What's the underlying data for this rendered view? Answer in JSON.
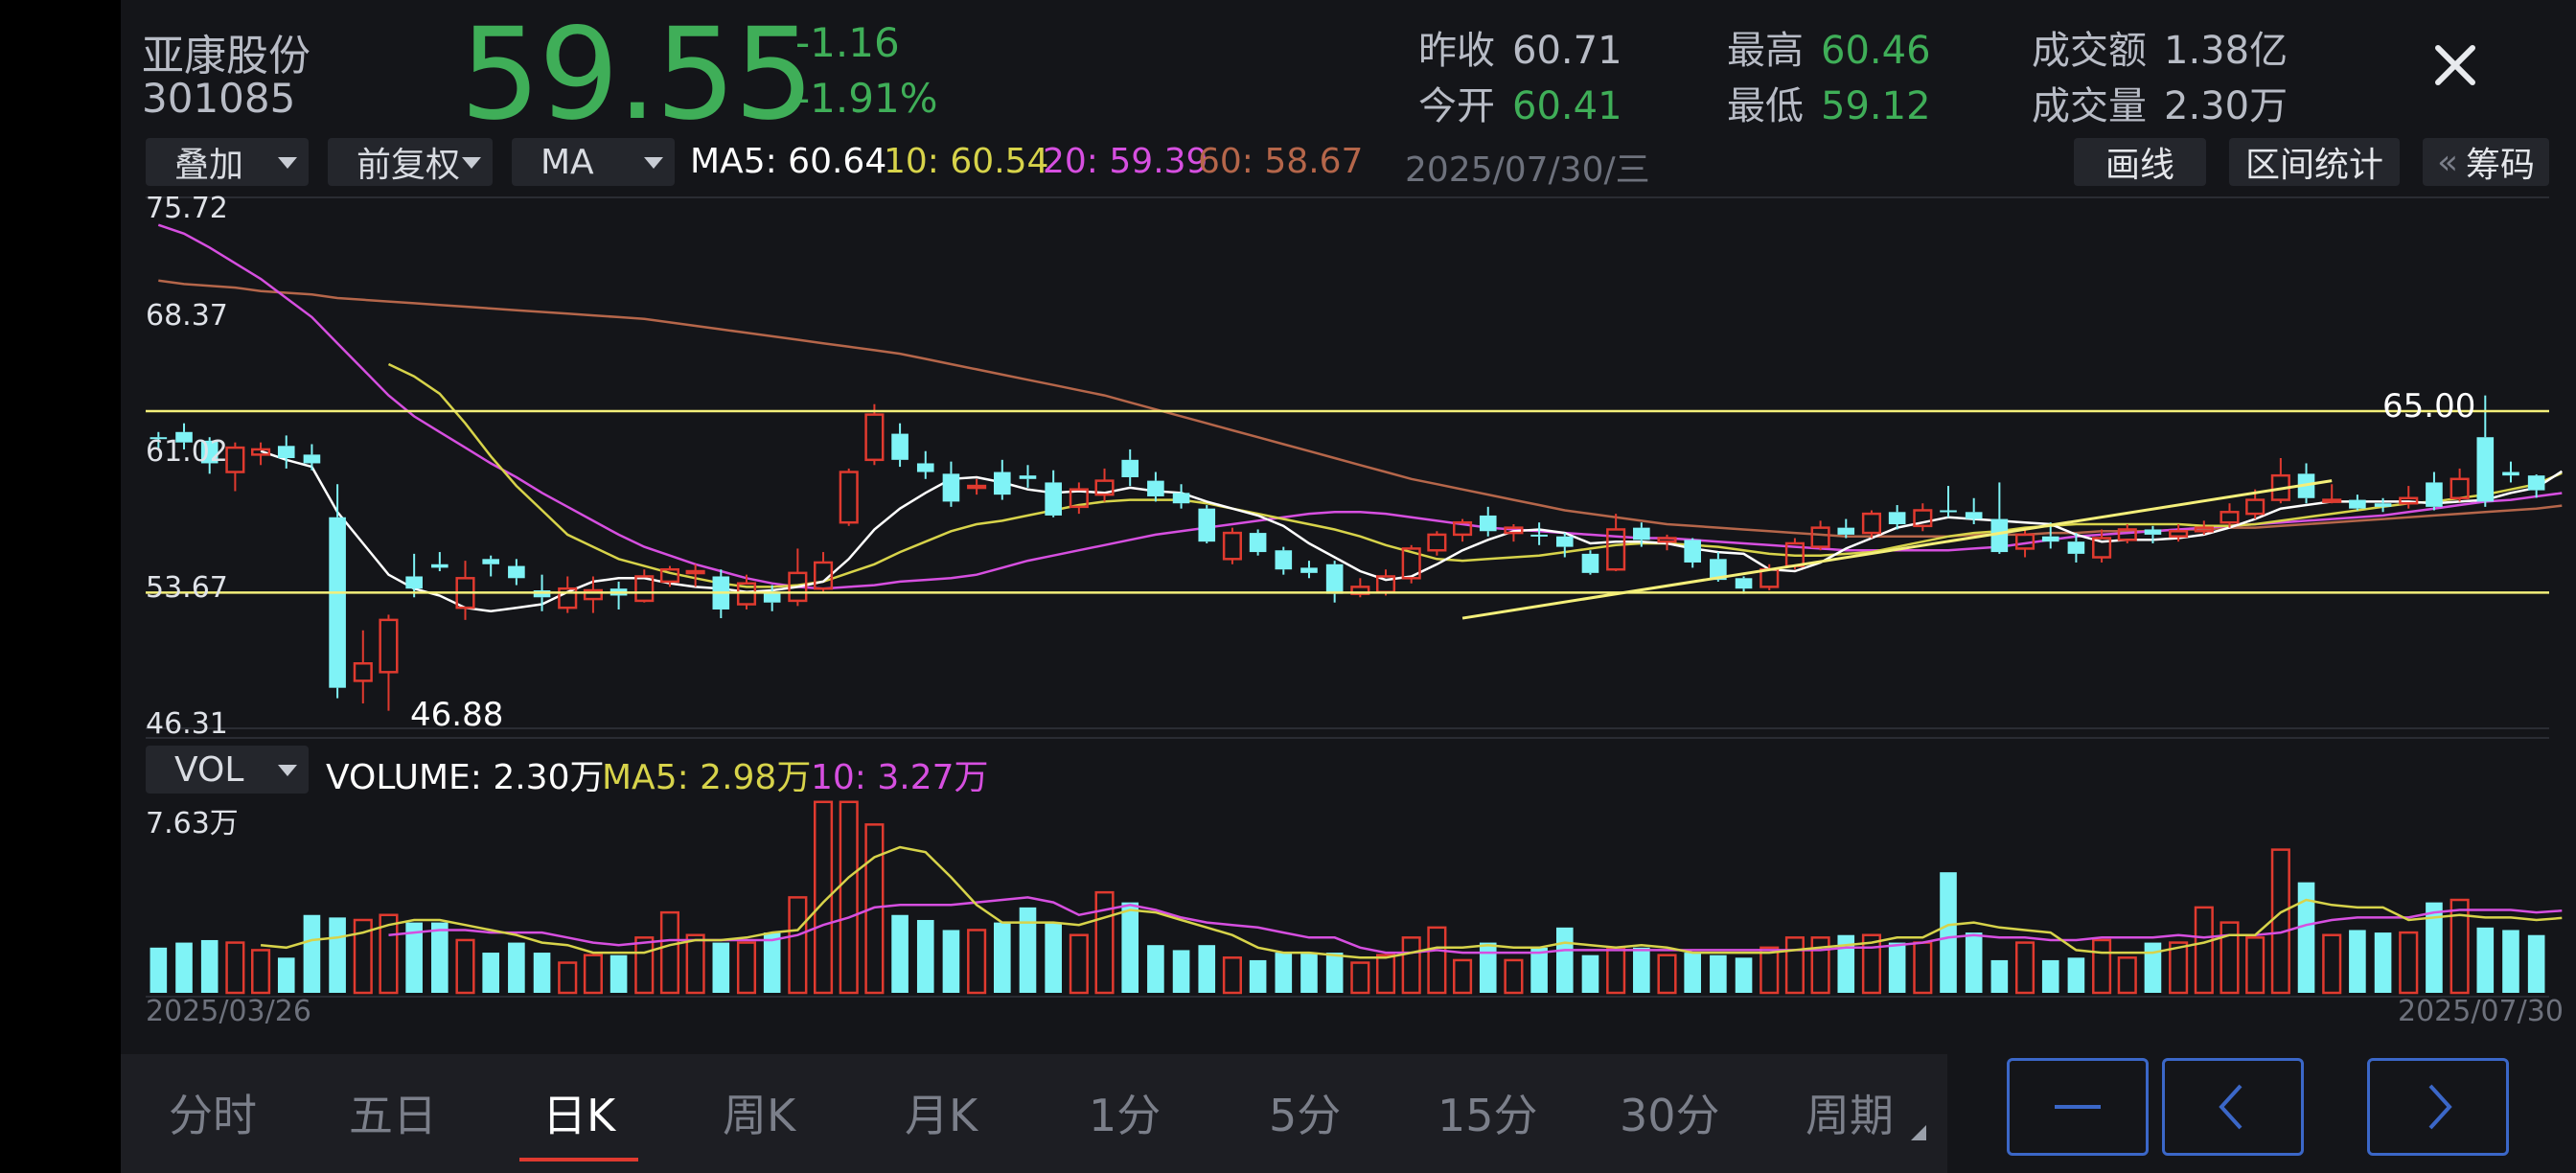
{
  "stock": {
    "name": "亚康股份",
    "code": "301085",
    "price": "59.55",
    "change": "-1.16",
    "change_pct": "-1.91%"
  },
  "stats": {
    "prev_close_label": "昨收",
    "prev_close": "60.71",
    "open_label": "今开",
    "open": "60.41",
    "high_label": "最高",
    "high": "60.46",
    "low_label": "最低",
    "low": "59.12",
    "amount_label": "成交额",
    "amount": "1.38亿",
    "volume_label": "成交量",
    "volume": "2.30万"
  },
  "toolbar": {
    "overlay": "叠加",
    "adjust": "前复权",
    "indicator": "MA",
    "draw_btn": "画线",
    "range_btn": "区间统计",
    "chips_btn": "筹码",
    "chips_prefix": "«"
  },
  "ma_legend": {
    "ma5": "MA5: 60.64",
    "ma10": "10: 60.54",
    "ma20": "20: 59.39",
    "ma60": "60: 58.67"
  },
  "current_date": "2025/07/30/三",
  "vol_legend": {
    "selector": "VOL",
    "volume": "VOLUME: 2.30万",
    "ma5": "MA5: 2.98万",
    "ma10": "10: 3.27万"
  },
  "colors": {
    "up": "#e03a2f",
    "down": "#7ff3f6",
    "green_text": "#3fae58",
    "ma5": "#ffffff",
    "ma10": "#d7d34a",
    "ma20": "#d64fe0",
    "ma60": "#b5664a",
    "trendline": "#f4ef7a",
    "accent_blue": "#3b67c8"
  },
  "chart_data": {
    "type": "candlestick",
    "y_ticks": [
      "75.72",
      "68.37",
      "61.02",
      "53.67",
      "46.31"
    ],
    "ylim": [
      46.31,
      75.72
    ],
    "annotations": {
      "low": "46.88",
      "high": "65.00"
    },
    "horizontal_lines": [
      64.1,
      53.67
    ],
    "trendline": [
      [
        51,
        52.2
      ],
      [
        85,
        60.1
      ]
    ],
    "x_start": "2025/03/26",
    "x_end": "2025/07/30",
    "candles": [
      [
        62.6,
        62.5,
        62.9,
        61.9
      ],
      [
        62.9,
        62.3,
        63.4,
        61.9
      ],
      [
        62.4,
        61.1,
        62.6,
        60.5
      ],
      [
        60.6,
        62.0,
        62.3,
        59.5
      ],
      [
        61.6,
        61.9,
        62.3,
        61.0
      ],
      [
        62.1,
        61.4,
        62.7,
        60.8
      ],
      [
        61.6,
        61.1,
        62.2,
        60.7
      ],
      [
        58.0,
        48.2,
        59.9,
        47.6
      ],
      [
        48.6,
        49.6,
        51.5,
        47.3
      ],
      [
        49.1,
        52.1,
        52.4,
        46.88
      ],
      [
        54.6,
        53.9,
        55.9,
        53.4
      ],
      [
        55.3,
        55.1,
        56.0,
        54.9
      ],
      [
        52.8,
        54.5,
        55.5,
        52.1
      ],
      [
        55.6,
        55.3,
        55.8,
        54.6
      ],
      [
        55.2,
        54.5,
        55.6,
        54.1
      ],
      [
        53.8,
        53.4,
        54.7,
        52.6
      ],
      [
        52.8,
        53.9,
        54.6,
        52.5
      ],
      [
        53.3,
        53.8,
        54.6,
        52.5
      ],
      [
        53.9,
        53.5,
        54.3,
        52.7
      ],
      [
        53.2,
        54.6,
        55.0,
        53.1
      ],
      [
        54.3,
        55.0,
        55.2,
        54.0
      ],
      [
        54.8,
        54.9,
        55.3,
        54.0
      ],
      [
        54.6,
        52.7,
        55.0,
        52.2
      ],
      [
        53.0,
        54.2,
        54.7,
        52.7
      ],
      [
        53.7,
        53.1,
        54.1,
        52.6
      ],
      [
        53.2,
        54.8,
        56.2,
        52.9
      ],
      [
        53.9,
        55.4,
        56.0,
        53.7
      ],
      [
        57.7,
        60.6,
        60.8,
        57.5
      ],
      [
        61.3,
        63.9,
        64.5,
        61.0
      ],
      [
        62.8,
        61.3,
        63.4,
        60.9
      ],
      [
        61.1,
        60.6,
        61.8,
        60.2
      ],
      [
        60.5,
        58.9,
        61.2,
        58.6
      ],
      [
        59.7,
        59.8,
        60.2,
        59.3
      ],
      [
        60.6,
        59.3,
        61.3,
        59.0
      ],
      [
        60.4,
        60.2,
        61.0,
        59.7
      ],
      [
        60.0,
        58.1,
        60.7,
        58.0
      ],
      [
        58.6,
        59.6,
        60.0,
        58.2
      ],
      [
        59.3,
        60.1,
        60.8,
        58.9
      ],
      [
        61.3,
        60.3,
        61.9,
        59.8
      ],
      [
        60.1,
        59.2,
        60.6,
        58.9
      ],
      [
        59.4,
        58.8,
        59.9,
        58.5
      ],
      [
        58.5,
        56.6,
        58.7,
        56.5
      ],
      [
        55.6,
        57.1,
        57.4,
        55.3
      ],
      [
        57.1,
        56.0,
        57.3,
        55.8
      ],
      [
        56.1,
        55.0,
        56.3,
        54.7
      ],
      [
        55.1,
        54.8,
        55.5,
        54.5
      ],
      [
        55.3,
        53.6,
        55.5,
        53.1
      ],
      [
        53.6,
        54.0,
        54.5,
        53.4
      ],
      [
        53.7,
        54.6,
        55.0,
        53.5
      ],
      [
        54.5,
        56.2,
        56.4,
        54.2
      ],
      [
        56.1,
        57.0,
        57.2,
        55.8
      ],
      [
        57.0,
        57.7,
        57.9,
        56.6
      ],
      [
        58.1,
        57.2,
        58.6,
        56.9
      ],
      [
        57.1,
        57.4,
        57.6,
        56.6
      ],
      [
        57.0,
        56.9,
        57.7,
        56.4
      ],
      [
        56.9,
        56.3,
        57.1,
        55.7
      ],
      [
        55.9,
        54.8,
        56.1,
        54.7
      ],
      [
        55.0,
        57.3,
        58.2,
        54.9
      ],
      [
        57.4,
        56.7,
        57.7,
        56.3
      ],
      [
        56.6,
        56.8,
        57.0,
        56.1
      ],
      [
        56.7,
        55.4,
        56.8,
        55.1
      ],
      [
        55.6,
        54.4,
        56.0,
        54.3
      ],
      [
        54.5,
        53.9,
        54.6,
        53.6
      ],
      [
        54.0,
        55.0,
        55.3,
        53.8
      ],
      [
        55.2,
        56.5,
        56.8,
        55.0
      ],
      [
        56.3,
        57.4,
        57.8,
        56.1
      ],
      [
        57.4,
        57.0,
        57.9,
        56.8
      ],
      [
        57.1,
        58.2,
        58.4,
        56.8
      ],
      [
        58.3,
        57.6,
        58.7,
        57.3
      ],
      [
        57.5,
        58.4,
        58.8,
        57.2
      ],
      [
        58.4,
        58.3,
        59.8,
        58.0
      ],
      [
        58.3,
        57.9,
        59.1,
        57.6
      ],
      [
        57.9,
        56.0,
        60.0,
        55.9
      ],
      [
        56.2,
        57.0,
        57.3,
        55.7
      ],
      [
        56.9,
        56.6,
        57.7,
        56.2
      ],
      [
        56.6,
        55.9,
        57.1,
        55.4
      ],
      [
        55.7,
        56.8,
        57.3,
        55.4
      ],
      [
        56.7,
        57.3,
        57.6,
        56.5
      ],
      [
        57.3,
        57.0,
        57.5,
        56.5
      ],
      [
        56.9,
        57.2,
        57.6,
        56.6
      ],
      [
        57.2,
        57.4,
        57.8,
        57.0
      ],
      [
        57.7,
        58.3,
        58.8,
        57.4
      ],
      [
        58.2,
        59.0,
        59.6,
        57.9
      ],
      [
        59.0,
        60.4,
        61.4,
        58.8
      ],
      [
        60.5,
        59.1,
        61.1,
        58.8
      ],
      [
        59.0,
        59.0,
        59.9,
        58.8
      ],
      [
        59.0,
        58.5,
        59.3,
        58.4
      ],
      [
        58.8,
        58.6,
        59.1,
        58.3
      ],
      [
        58.8,
        59.1,
        59.8,
        58.5
      ],
      [
        60.0,
        58.6,
        60.6,
        58.4
      ],
      [
        59.1,
        60.2,
        60.8,
        58.9
      ],
      [
        62.6,
        58.9,
        65.0,
        58.6
      ],
      [
        60.6,
        60.4,
        61.2,
        60.0
      ],
      [
        60.4,
        59.55,
        60.46,
        59.12
      ]
    ],
    "ma5": [
      null,
      null,
      null,
      null,
      61.8,
      61.3,
      60.9,
      58.3,
      56.5,
      54.7,
      53.9,
      53.5,
      52.8,
      52.6,
      52.8,
      53.0,
      53.7,
      54.3,
      54.5,
      54.5,
      54.2,
      54.0,
      53.9,
      53.7,
      53.8,
      54.0,
      54.3,
      55.6,
      57.3,
      58.5,
      59.4,
      60.2,
      60.3,
      60.0,
      59.6,
      59.4,
      59.5,
      59.4,
      59.7,
      59.5,
      59.4,
      58.9,
      58.5,
      58.1,
      57.5,
      56.5,
      55.7,
      54.9,
      54.4,
      54.6,
      55.3,
      56.1,
      56.7,
      57.2,
      57.3,
      57.1,
      56.5,
      56.6,
      56.6,
      56.5,
      56.2,
      56.0,
      55.9,
      55.0,
      54.9,
      55.4,
      56.2,
      56.8,
      57.4,
      57.7,
      58.0,
      57.9,
      57.8,
      57.7,
      57.6,
      57.0,
      56.6,
      56.7,
      56.7,
      56.8,
      57.0,
      57.4,
      57.9,
      58.5,
      58.7,
      58.9,
      58.9,
      58.9,
      58.9,
      58.8,
      58.9,
      59.0,
      59.4,
      59.7,
      60.64
    ],
    "ma10": [
      null,
      null,
      null,
      null,
      null,
      null,
      null,
      null,
      null,
      66.8,
      66.1,
      65.1,
      63.4,
      61.5,
      59.8,
      58.4,
      57.0,
      56.3,
      55.6,
      55.2,
      54.8,
      54.5,
      54.2,
      54.0,
      54.0,
      54.1,
      54.3,
      54.8,
      55.3,
      56.0,
      56.6,
      57.2,
      57.6,
      57.8,
      58.1,
      58.4,
      58.7,
      58.9,
      59.0,
      59.0,
      59.0,
      58.8,
      58.5,
      58.2,
      57.9,
      57.6,
      57.3,
      56.9,
      56.4,
      56.0,
      55.6,
      55.5,
      55.6,
      55.7,
      55.8,
      56.0,
      56.2,
      56.4,
      56.5,
      56.5,
      56.4,
      56.3,
      56.1,
      55.9,
      55.8,
      55.8,
      55.9,
      56.0,
      56.3,
      56.6,
      56.9,
      57.1,
      57.2,
      57.4,
      57.5,
      57.6,
      57.6,
      57.6,
      57.6,
      57.6,
      57.5,
      57.5,
      57.6,
      57.8,
      58.0,
      58.2,
      58.4,
      58.6,
      58.8,
      58.9,
      59.1,
      59.3,
      59.6,
      59.9,
      60.54
    ],
    "ma20": [
      74.8,
      74.3,
      73.5,
      72.6,
      71.7,
      70.6,
      69.5,
      68.0,
      66.5,
      65.0,
      63.8,
      62.9,
      62.0,
      61.1,
      60.3,
      59.4,
      58.6,
      57.8,
      57.0,
      56.3,
      55.8,
      55.3,
      54.9,
      54.5,
      54.2,
      54.0,
      53.9,
      54.0,
      54.1,
      54.3,
      54.4,
      54.5,
      54.7,
      55.1,
      55.5,
      55.8,
      56.1,
      56.4,
      56.7,
      57.0,
      57.2,
      57.4,
      57.6,
      57.8,
      58.0,
      58.2,
      58.3,
      58.3,
      58.2,
      58.0,
      57.8,
      57.6,
      57.4,
      57.3,
      57.2,
      57.1,
      57.0,
      56.9,
      56.8,
      56.8,
      56.7,
      56.6,
      56.5,
      56.4,
      56.3,
      56.2,
      56.1,
      56.1,
      56.1,
      56.1,
      56.1,
      56.2,
      56.3,
      56.5,
      56.7,
      56.9,
      57.0,
      57.1,
      57.2,
      57.3,
      57.4,
      57.5,
      57.6,
      57.7,
      57.8,
      57.9,
      58.0,
      58.1,
      58.3,
      58.5,
      58.7,
      58.9,
      59.0,
      59.2,
      59.39
    ],
    "ma60": [
      71.6,
      71.4,
      71.3,
      71.2,
      71.0,
      70.9,
      70.8,
      70.6,
      70.5,
      70.4,
      70.3,
      70.2,
      70.1,
      70.0,
      69.9,
      69.8,
      69.7,
      69.6,
      69.5,
      69.4,
      69.2,
      69.0,
      68.8,
      68.6,
      68.4,
      68.2,
      68.0,
      67.8,
      67.6,
      67.4,
      67.1,
      66.8,
      66.5,
      66.2,
      65.9,
      65.6,
      65.3,
      65.0,
      64.6,
      64.2,
      63.8,
      63.4,
      63.0,
      62.6,
      62.2,
      61.8,
      61.4,
      61.0,
      60.6,
      60.2,
      59.9,
      59.6,
      59.3,
      59.0,
      58.7,
      58.4,
      58.2,
      58.0,
      57.8,
      57.6,
      57.5,
      57.4,
      57.3,
      57.2,
      57.1,
      57.0,
      56.9,
      56.9,
      56.9,
      56.9,
      56.9,
      57.0,
      57.0,
      57.0,
      57.1,
      57.1,
      57.2,
      57.2,
      57.2,
      57.3,
      57.3,
      57.4,
      57.4,
      57.5,
      57.6,
      57.7,
      57.8,
      57.9,
      58.0,
      58.1,
      58.2,
      58.3,
      58.4,
      58.5,
      58.67
    ],
    "volume_ticks": [
      "7.63万"
    ],
    "volume_max": 7.63,
    "volume": [
      1.8,
      2.0,
      2.1,
      2.0,
      1.7,
      1.4,
      3.1,
      3.0,
      2.9,
      3.1,
      2.8,
      2.8,
      2.1,
      1.6,
      2.0,
      1.6,
      1.2,
      1.5,
      1.5,
      2.2,
      3.2,
      2.3,
      2.0,
      2.0,
      2.4,
      3.8,
      7.6,
      7.6,
      6.7,
      3.1,
      2.9,
      2.5,
      2.5,
      2.8,
      3.4,
      2.8,
      2.3,
      4.0,
      3.6,
      1.9,
      1.7,
      1.9,
      1.4,
      1.3,
      1.6,
      1.6,
      1.6,
      1.2,
      1.5,
      2.2,
      2.6,
      1.3,
      2.0,
      1.3,
      1.8,
      2.6,
      1.5,
      1.8,
      1.8,
      1.5,
      1.6,
      1.5,
      1.4,
      1.8,
      2.2,
      2.2,
      2.3,
      2.3,
      2.0,
      2.0,
      4.8,
      2.4,
      1.3,
      2.0,
      1.3,
      1.4,
      2.1,
      1.4,
      2.0,
      2.0,
      3.4,
      2.8,
      2.2,
      5.7,
      4.4,
      2.3,
      2.5,
      2.4,
      2.4,
      3.6,
      3.7,
      2.6,
      2.5,
      2.3
    ],
    "vol_ma5": [
      null,
      null,
      null,
      null,
      1.9,
      1.8,
      2.1,
      2.2,
      2.4,
      2.7,
      2.9,
      2.9,
      2.7,
      2.5,
      2.3,
      2.0,
      1.9,
      1.6,
      1.6,
      1.6,
      1.9,
      2.1,
      2.1,
      2.2,
      2.4,
      2.5,
      3.6,
      4.6,
      5.4,
      5.8,
      5.6,
      4.6,
      3.5,
      2.8,
      2.8,
      2.8,
      2.7,
      3.0,
      3.3,
      3.2,
      2.9,
      2.6,
      2.3,
      1.8,
      1.6,
      1.6,
      1.5,
      1.4,
      1.4,
      1.6,
      1.8,
      1.8,
      1.9,
      1.8,
      1.8,
      2.0,
      1.9,
      1.8,
      1.9,
      1.8,
      1.6,
      1.6,
      1.6,
      1.6,
      1.7,
      1.8,
      1.9,
      2.0,
      2.2,
      2.2,
      2.7,
      2.8,
      2.6,
      2.5,
      2.4,
      1.7,
      1.6,
      1.6,
      1.6,
      1.8,
      2.0,
      2.3,
      2.3,
      3.2,
      3.7,
      3.5,
      3.4,
      3.4,
      2.9,
      3.0,
      3.1,
      3.0,
      3.0,
      2.9,
      2.98
    ],
    "vol_ma10": [
      null,
      null,
      null,
      null,
      null,
      null,
      null,
      null,
      null,
      2.3,
      2.4,
      2.5,
      2.5,
      2.4,
      2.4,
      2.4,
      2.2,
      2.0,
      1.9,
      2.0,
      2.1,
      2.1,
      2.1,
      2.1,
      2.1,
      2.3,
      2.7,
      3.0,
      3.4,
      3.5,
      3.5,
      3.5,
      3.6,
      3.7,
      3.8,
      3.6,
      3.1,
      3.3,
      3.5,
      3.3,
      3.0,
      2.8,
      2.7,
      2.6,
      2.4,
      2.2,
      2.2,
      1.8,
      1.6,
      1.6,
      1.7,
      1.6,
      1.6,
      1.6,
      1.6,
      1.7,
      1.7,
      1.7,
      1.7,
      1.7,
      1.7,
      1.7,
      1.7,
      1.7,
      1.7,
      1.7,
      1.8,
      1.8,
      1.9,
      2.0,
      2.2,
      2.3,
      2.2,
      2.2,
      2.1,
      2.1,
      2.2,
      2.2,
      2.2,
      2.3,
      2.2,
      2.3,
      2.3,
      2.4,
      2.7,
      2.9,
      3.0,
      3.0,
      3.0,
      3.2,
      3.3,
      3.3,
      3.3,
      3.2,
      3.27
    ]
  },
  "tabs": [
    "分时",
    "五日",
    "日K",
    "周K",
    "月K",
    "1分",
    "5分",
    "15分",
    "30分",
    "周期"
  ],
  "active_tab": "日K"
}
